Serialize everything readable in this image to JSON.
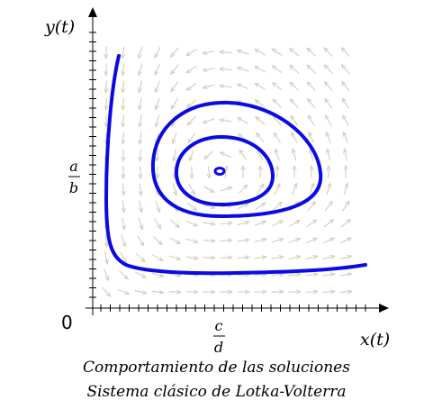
{
  "axes": {
    "y_label": "y(t)",
    "x_label": "x(t)",
    "origin_label": "0",
    "y_mark": {
      "numerator": "a",
      "denominator": "b"
    },
    "x_mark": {
      "numerator": "c",
      "denominator": "d"
    }
  },
  "caption": {
    "line1": "Comportamiento de las soluciones",
    "line2": "Sistema clásico de Lotka-Volterra"
  },
  "colors": {
    "orbit": "#0a0ae6",
    "field": "#cfcfb8",
    "axis": "#000000"
  }
}
